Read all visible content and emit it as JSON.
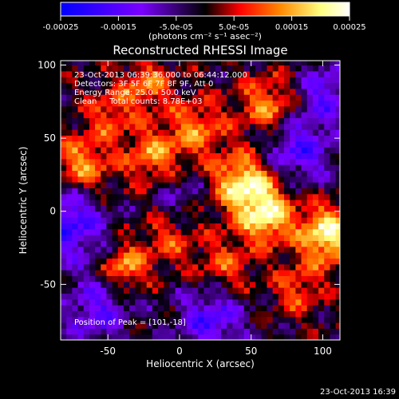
{
  "chart_data": {
    "type": "heatmap",
    "title": "Reconstructed RHESSI Image",
    "xlabel": "Heliocentric X (arcsec)",
    "ylabel": "Heliocentric Y (arcsec)",
    "xlim": [
      -83,
      112
    ],
    "ylim": [
      -88,
      103
    ],
    "x_ticks": [
      -50,
      0,
      50,
      100
    ],
    "y_ticks": [
      -50,
      0,
      50,
      100
    ],
    "x_tick_labels": [
      "-50",
      "0",
      "50",
      "100"
    ],
    "y_tick_labels": [
      "-50",
      "0",
      "50",
      "100"
    ],
    "colorbar": {
      "range": [
        -0.00025,
        0.00025
      ],
      "ticks": [
        -0.00025,
        -0.00015,
        -5e-05,
        5e-05,
        0.00015,
        0.00025
      ],
      "tick_labels": [
        "-0.00025",
        "-0.00015",
        "-5.0e-05",
        "5.0e-05",
        "0.00015",
        "0.00025"
      ],
      "unit_label": "(photons cm⁻² s⁻¹ asec⁻²)",
      "colors": [
        "#0000ff",
        "#7a00ff",
        "#000000",
        "#ff0000",
        "#ff8800",
        "#ffff80",
        "#ffffff"
      ]
    },
    "annotations": [
      "23-Oct-2013 06:39:36.000 to 06:44:12.000",
      "Detectors: 3F 5F 6F 7F 8F 9F, Att 0",
      "Energy Range: 25.0 - 50.0 keV",
      "Clean     Total counts: 8.78E+03"
    ],
    "peak_label": "Position of Peak = [101,-18]",
    "peak_position": [
      101,
      -18
    ],
    "grid": false,
    "legend": "colorbar-top"
  },
  "footer": {
    "timestamp": "23-Oct-2013 16:39"
  }
}
